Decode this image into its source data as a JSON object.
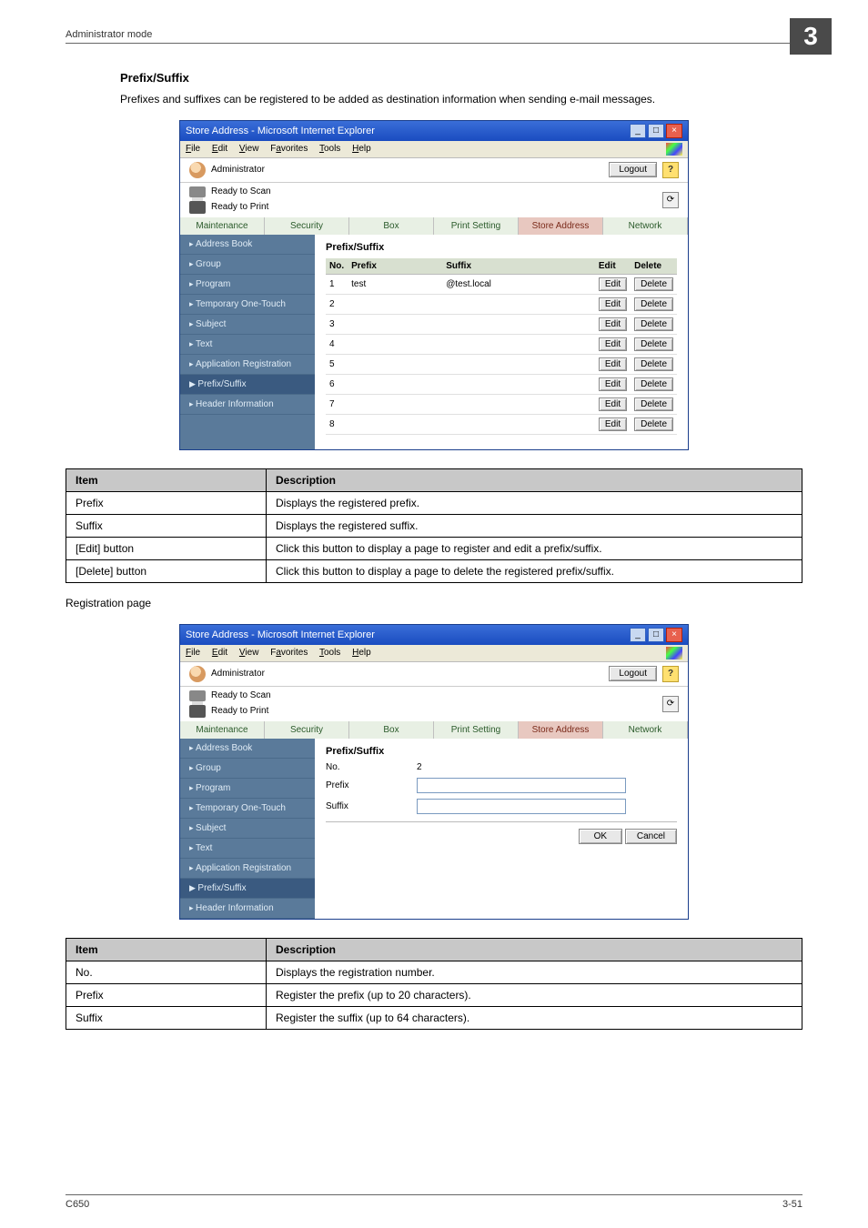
{
  "header": {
    "mode_label": "Administrator mode",
    "chapter": "3"
  },
  "section": {
    "title": "Prefix/Suffix",
    "intro": "Prefixes and suffixes can be registered to be added as destination information when sending e-mail messages."
  },
  "ie": {
    "title": "Store Address - Microsoft Internet Explorer",
    "menus": {
      "file": "File",
      "edit": "Edit",
      "view": "View",
      "favorites": "Favorites",
      "tools": "Tools",
      "help": "Help"
    },
    "role": "Administrator",
    "logout": "Logout",
    "status": {
      "scan": "Ready to Scan",
      "print": "Ready to Print"
    },
    "tabs": {
      "maintenance": "Maintenance",
      "security": "Security",
      "box": "Box",
      "print_setting": "Print Setting",
      "store_address": "Store Address",
      "network": "Network"
    },
    "sidebar": {
      "address_book": "Address Book",
      "group": "Group",
      "program": "Program",
      "temporary": "Temporary One-Touch",
      "subject": "Subject",
      "text": "Text",
      "app_reg": "Application Registration",
      "prefix_suffix": "Prefix/Suffix",
      "header_info": "Header Information"
    }
  },
  "list_pane": {
    "title": "Prefix/Suffix",
    "headers": {
      "no": "No.",
      "prefix": "Prefix",
      "suffix": "Suffix",
      "edit": "Edit",
      "delete": "Delete"
    },
    "rows": [
      {
        "no": "1",
        "prefix": "test",
        "suffix": "@test.local"
      },
      {
        "no": "2",
        "prefix": "",
        "suffix": ""
      },
      {
        "no": "3",
        "prefix": "",
        "suffix": ""
      },
      {
        "no": "4",
        "prefix": "",
        "suffix": ""
      },
      {
        "no": "5",
        "prefix": "",
        "suffix": ""
      },
      {
        "no": "6",
        "prefix": "",
        "suffix": ""
      },
      {
        "no": "7",
        "prefix": "",
        "suffix": ""
      },
      {
        "no": "8",
        "prefix": "",
        "suffix": ""
      }
    ],
    "buttons": {
      "edit": "Edit",
      "delete": "Delete"
    }
  },
  "spec1": {
    "header": {
      "item": "Item",
      "desc": "Description"
    },
    "rows": [
      {
        "item": "Prefix",
        "desc": "Displays the registered prefix."
      },
      {
        "item": "Suffix",
        "desc": "Displays the registered suffix."
      },
      {
        "item": "[Edit] button",
        "desc": "Click this button to display a page to register and edit a prefix/suffix."
      },
      {
        "item": "[Delete] button",
        "desc": "Click this button to display a page to delete the registered prefix/suffix."
      }
    ]
  },
  "reg_caption": "Registration page",
  "reg_pane": {
    "title": "Prefix/Suffix",
    "labels": {
      "no": "No.",
      "prefix": "Prefix",
      "suffix": "Suffix"
    },
    "no_value": "2",
    "ok": "OK",
    "cancel": "Cancel"
  },
  "spec2": {
    "header": {
      "item": "Item",
      "desc": "Description"
    },
    "rows": [
      {
        "item": "No.",
        "desc": "Displays the registration number."
      },
      {
        "item": "Prefix",
        "desc": "Register the prefix (up to 20 characters)."
      },
      {
        "item": "Suffix",
        "desc": "Register the suffix (up to 64 characters)."
      }
    ]
  },
  "footer": {
    "left": "C650",
    "right": "3-51"
  }
}
